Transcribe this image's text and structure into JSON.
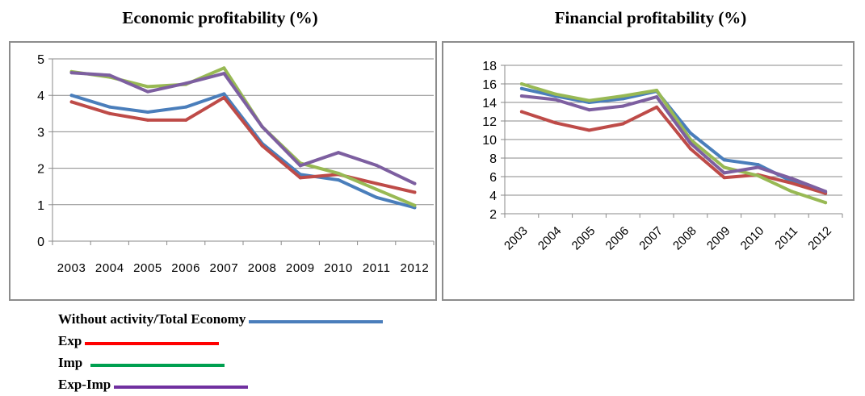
{
  "chart_data": [
    {
      "type": "line",
      "title": "Economic profitability (%)",
      "x": [
        "2003",
        "2004",
        "2005",
        "2006",
        "2007",
        "2008",
        "2009",
        "2010",
        "2011",
        "2012"
      ],
      "ylim": [
        0,
        5
      ],
      "yticks": [
        0,
        1,
        2,
        3,
        4,
        5
      ],
      "grid": true,
      "series": [
        {
          "name": "Without activity/Total Economy",
          "color": "#4a7ebb",
          "values": [
            4.0,
            3.68,
            3.54,
            3.68,
            4.04,
            2.68,
            1.83,
            1.68,
            1.2,
            0.92
          ]
        },
        {
          "name": "Exp",
          "color": "#be4b48",
          "values": [
            3.82,
            3.5,
            3.32,
            3.32,
            3.94,
            2.62,
            1.74,
            1.83,
            1.58,
            1.34
          ]
        },
        {
          "name": "Imp",
          "color": "#98b954",
          "values": [
            4.65,
            4.5,
            4.24,
            4.3,
            4.75,
            3.14,
            2.14,
            1.86,
            1.42,
            0.98
          ]
        },
        {
          "name": "Exp-Imp",
          "color": "#7d5fa0",
          "values": [
            4.62,
            4.55,
            4.1,
            4.33,
            4.6,
            3.14,
            2.07,
            2.43,
            2.08,
            1.58
          ]
        }
      ]
    },
    {
      "type": "line",
      "title": "Financial profitability (%)",
      "x": [
        "2003",
        "2004",
        "2005",
        "2006",
        "2007",
        "2008",
        "2009",
        "2010",
        "2011",
        "2012"
      ],
      "ylim": [
        2,
        18
      ],
      "yticks": [
        2,
        4,
        6,
        8,
        10,
        12,
        14,
        16,
        18
      ],
      "grid": true,
      "series": [
        {
          "name": "Without activity/Total Economy",
          "color": "#4a7ebb",
          "values": [
            15.5,
            14.7,
            14.0,
            14.4,
            15.2,
            10.7,
            7.8,
            7.3,
            5.5,
            4.3
          ]
        },
        {
          "name": "Exp",
          "color": "#be4b48",
          "values": [
            13.0,
            11.8,
            11.0,
            11.7,
            13.5,
            9.0,
            5.9,
            6.2,
            5.3,
            4.2
          ]
        },
        {
          "name": "Imp",
          "color": "#98b954",
          "values": [
            16.0,
            14.9,
            14.2,
            14.7,
            15.3,
            10.0,
            7.0,
            6.1,
            4.4,
            3.2
          ]
        },
        {
          "name": "Exp-Imp",
          "color": "#7d5fa0",
          "values": [
            14.7,
            14.3,
            13.2,
            13.6,
            14.6,
            9.6,
            6.4,
            7.0,
            5.8,
            4.4
          ]
        }
      ]
    }
  ],
  "legend": [
    {
      "label": "Without activity/Total Economy",
      "color": "#4a7ebb"
    },
    {
      "label": "Exp",
      "color": "#ff0000"
    },
    {
      "label": "Imp",
      "color": "#00a050"
    },
    {
      "label": "Exp-Imp",
      "color": "#7030a0"
    }
  ]
}
